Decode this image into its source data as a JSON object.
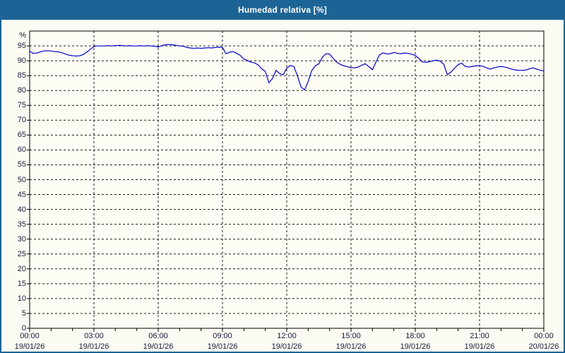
{
  "window": {
    "title": "Humedad relativa [%]"
  },
  "colors": {
    "titlebar_bg": "#1c6496",
    "frame_border": "#1c6496",
    "body_bg": "#fbfbf3",
    "plot_bg": "#fdfdf6",
    "line": "#0000cc",
    "grid": "#1a1a1a",
    "plot_border": "#000000",
    "label_text": "#1a1a3c",
    "title_text": "#ffffff"
  },
  "chart_data": {
    "type": "line",
    "title": "Humedad relativa [%]",
    "y_unit_label": "%",
    "ylim": [
      0,
      100
    ],
    "y_tick_step": 5,
    "y_labeled_ticks_from": 0,
    "y_labeled_ticks_to": 95,
    "grid": "dashed",
    "legend": "none",
    "x_axis_hours": 24,
    "x_minor_tick_every_hours": 1,
    "x_major_tick_every_hours": 3,
    "x_major_ticks": [
      {
        "time": "00:00",
        "date": "19/01/26"
      },
      {
        "time": "03:00",
        "date": "19/01/26"
      },
      {
        "time": "06:00",
        "date": "19/01/26"
      },
      {
        "time": "09:00",
        "date": "19/01/26"
      },
      {
        "time": "12:00",
        "date": "19/01/26"
      },
      {
        "time": "15:00",
        "date": "19/01/26"
      },
      {
        "time": "18:00",
        "date": "19/01/26"
      },
      {
        "time": "21:00",
        "date": "19/01/26"
      },
      {
        "time": "00:00",
        "date": "20/01/26"
      }
    ],
    "series": [
      {
        "name": "Humedad relativa",
        "start_hour": 0,
        "step_minutes": 10,
        "values_pct": [
          93.2,
          92.5,
          92.6,
          93.0,
          93.3,
          93.4,
          93.3,
          93.1,
          93.0,
          92.7,
          92.3,
          91.9,
          91.7,
          91.6,
          91.7,
          92.1,
          92.9,
          93.9,
          94.8,
          95.0,
          95.0,
          95.0,
          95.1,
          95.0,
          95.1,
          95.2,
          95.1,
          95.0,
          95.1,
          95.0,
          95.0,
          95.1,
          95.0,
          95.1,
          95.0,
          94.9,
          94.6,
          95.1,
          95.4,
          95.5,
          95.4,
          95.2,
          95.0,
          94.9,
          94.5,
          94.3,
          94.2,
          94.3,
          94.2,
          94.3,
          94.4,
          94.3,
          94.5,
          94.6,
          94.5,
          92.4,
          92.9,
          93.1,
          92.5,
          91.8,
          90.6,
          90.1,
          89.5,
          89.3,
          88.6,
          87.3,
          86.4,
          82.6,
          84.0,
          86.8,
          85.7,
          85.3,
          87.5,
          88.4,
          88.1,
          84.9,
          81.2,
          80.2,
          83.0,
          86.7,
          88.3,
          89.0,
          91.2,
          92.4,
          92.3,
          90.8,
          89.5,
          88.8,
          88.3,
          88.0,
          87.7,
          87.6,
          87.9,
          88.5,
          89.0,
          88.0,
          87.0,
          89.6,
          92.0,
          92.7,
          92.3,
          92.4,
          92.8,
          92.5,
          92.4,
          92.6,
          92.5,
          92.2,
          91.8,
          90.8,
          89.6,
          89.5,
          89.7,
          90.0,
          90.2,
          89.9,
          88.8,
          85.3,
          86.2,
          87.5,
          88.7,
          89.2,
          88.1,
          87.9,
          88.1,
          88.3,
          88.4,
          88.1,
          87.6,
          87.2,
          87.6,
          87.9,
          88.1,
          87.9,
          87.6,
          87.2,
          86.9,
          86.8,
          86.8,
          86.9,
          87.3,
          87.6,
          87.2,
          86.8,
          86.6
        ]
      }
    ]
  }
}
